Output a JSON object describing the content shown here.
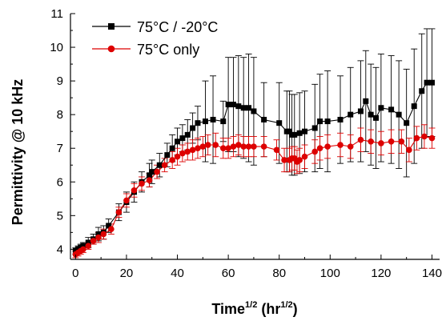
{
  "chart_data": {
    "type": "line",
    "xlabel_main": "Time",
    "xlabel_sup1": "1/2",
    "xlabel_mid": " (hr",
    "xlabel_sup2": "1/2",
    "xlabel_end": ")",
    "ylabel": "Permittivity @ 10 kHz",
    "xlim": [
      -2,
      143
    ],
    "ylim": [
      3.7,
      11
    ],
    "xticks": [
      0,
      20,
      40,
      60,
      80,
      100,
      120,
      140
    ],
    "yticks": [
      4,
      5,
      6,
      7,
      8,
      9,
      10,
      11
    ],
    "grid": false,
    "legend_position": "top-left",
    "series": [
      {
        "name": "75°C / -20°C",
        "color": "#000000",
        "marker": "square",
        "x": [
          0,
          1,
          2,
          3,
          5,
          7,
          9,
          11,
          13,
          17,
          20,
          23,
          26,
          29,
          30,
          33,
          36,
          38,
          40,
          42,
          44,
          46,
          48,
          51,
          54,
          58,
          60,
          62,
          64,
          66,
          68,
          70,
          74,
          80,
          83,
          84,
          85,
          86,
          88,
          90,
          94,
          96,
          99,
          104,
          108,
          112,
          114,
          116,
          118,
          120,
          124,
          127,
          130,
          133,
          136,
          138,
          140
        ],
        "y": [
          3.95,
          4.0,
          4.05,
          4.1,
          4.2,
          4.3,
          4.45,
          4.5,
          4.7,
          5.1,
          5.4,
          5.7,
          6.0,
          6.2,
          6.3,
          6.5,
          6.8,
          7.0,
          7.2,
          7.3,
          7.4,
          7.6,
          7.75,
          7.8,
          7.85,
          7.8,
          8.3,
          8.3,
          8.25,
          8.2,
          8.2,
          8.1,
          7.85,
          7.75,
          7.5,
          7.5,
          7.4,
          7.4,
          7.45,
          7.5,
          7.6,
          7.8,
          7.8,
          7.85,
          8.0,
          8.1,
          8.4,
          8.0,
          7.9,
          8.2,
          8.15,
          8.0,
          7.75,
          8.25,
          8.7,
          8.95,
          8.95
        ],
        "error": [
          0.1,
          0.1,
          0.1,
          0.1,
          0.15,
          0.15,
          0.2,
          0.2,
          0.2,
          0.25,
          0.3,
          0.3,
          0.3,
          0.35,
          0.35,
          0.35,
          0.35,
          0.4,
          0.4,
          0.4,
          0.45,
          0.45,
          0.5,
          1.2,
          1.3,
          0.6,
          1.4,
          1.4,
          1.5,
          1.5,
          1.6,
          1.6,
          1.1,
          1.2,
          1.2,
          1.2,
          1.2,
          1.2,
          1.2,
          1.2,
          1.3,
          1.4,
          1.5,
          1.3,
          1.4,
          1.5,
          1.5,
          1.5,
          1.5,
          1.6,
          1.6,
          1.6,
          1.6,
          1.7,
          1.7,
          1.6,
          1.6
        ]
      },
      {
        "name": "75°C only",
        "color": "#dd0000",
        "marker": "circle",
        "x": [
          0,
          1,
          2,
          3,
          5,
          7,
          9,
          11,
          14,
          17,
          20,
          23,
          26,
          29,
          32,
          35,
          38,
          40,
          42,
          44,
          46,
          48,
          50,
          52,
          55,
          58,
          60,
          62,
          64,
          66,
          68,
          70,
          74,
          79,
          82,
          84,
          85,
          86,
          87,
          88,
          90,
          94,
          96,
          99,
          104,
          108,
          112,
          116,
          120,
          124,
          128,
          131,
          134,
          137,
          140
        ],
        "y": [
          3.85,
          3.9,
          3.95,
          4.0,
          4.1,
          4.25,
          4.35,
          4.45,
          4.6,
          5.1,
          5.45,
          5.75,
          5.95,
          6.05,
          6.3,
          6.5,
          6.65,
          6.75,
          6.85,
          6.9,
          6.95,
          7.0,
          7.05,
          7.1,
          7.1,
          7.0,
          7.0,
          7.05,
          7.1,
          7.05,
          7.05,
          7.05,
          7.05,
          6.95,
          6.65,
          6.65,
          6.7,
          6.7,
          6.6,
          6.65,
          6.75,
          6.9,
          7.0,
          7.05,
          7.1,
          7.05,
          7.25,
          7.2,
          7.15,
          7.2,
          7.2,
          6.95,
          7.3,
          7.35,
          7.3
        ],
        "error": [
          0.1,
          0.1,
          0.1,
          0.1,
          0.1,
          0.1,
          0.15,
          0.15,
          0.15,
          0.15,
          0.2,
          0.2,
          0.2,
          0.2,
          0.2,
          0.2,
          0.25,
          0.25,
          0.25,
          0.25,
          0.3,
          0.3,
          0.3,
          0.3,
          0.35,
          0.3,
          0.3,
          0.3,
          0.3,
          0.3,
          0.3,
          0.3,
          0.3,
          0.3,
          0.35,
          0.35,
          0.35,
          0.35,
          0.35,
          0.35,
          0.35,
          0.35,
          0.35,
          0.35,
          0.35,
          0.35,
          0.35,
          0.35,
          0.35,
          0.35,
          0.35,
          0.35,
          0.35,
          0.35,
          0.3
        ]
      }
    ]
  }
}
